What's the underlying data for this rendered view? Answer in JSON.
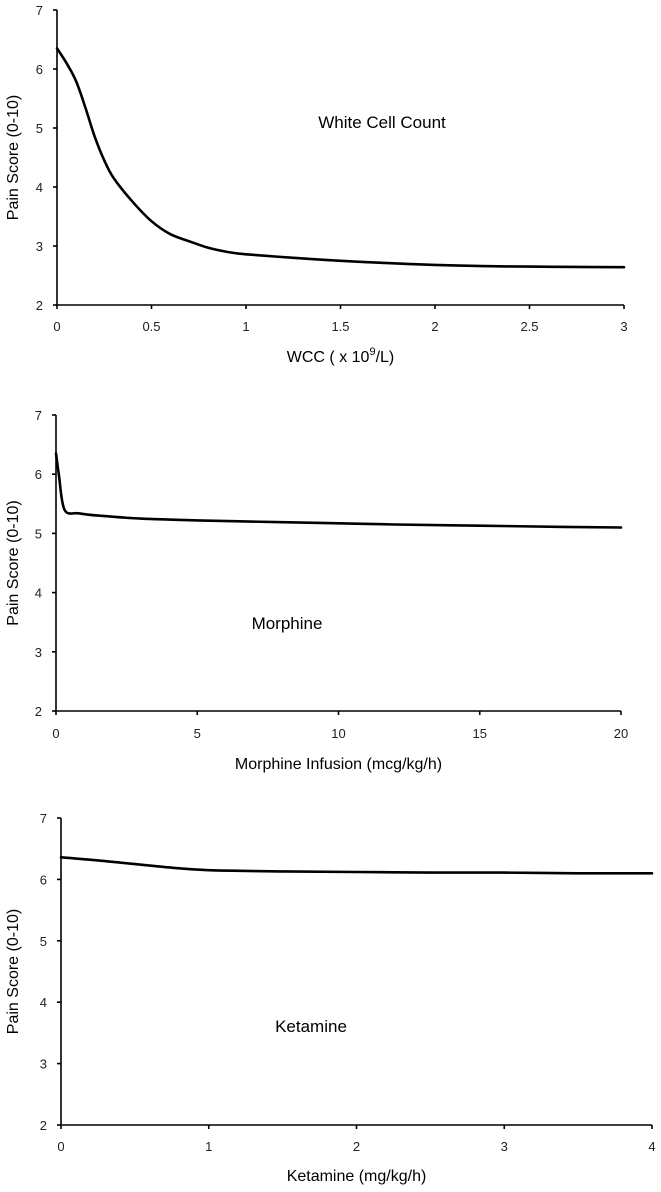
{
  "chart_data": [
    {
      "type": "line",
      "title": "",
      "annotation": "White Cell Count",
      "xlabel_main": "WCC ( x 10",
      "xlabel_sup": "9",
      "xlabel_tail": "/L)",
      "ylabel": "Pain Score (0-10)",
      "xlim": [
        0,
        3
      ],
      "ylim": [
        2,
        7
      ],
      "xticks": [
        0,
        0.5,
        1,
        1.5,
        2,
        2.5,
        3
      ],
      "yticks": [
        2,
        3,
        4,
        5,
        6,
        7
      ],
      "series": [
        {
          "name": "White Cell Count",
          "x": [
            0,
            0.05,
            0.1,
            0.15,
            0.2,
            0.25,
            0.3,
            0.4,
            0.5,
            0.6,
            0.7,
            0.8,
            0.9,
            1.0,
            1.25,
            1.5,
            1.75,
            2.0,
            2.25,
            2.5,
            2.75,
            3.0
          ],
          "y": [
            6.35,
            6.1,
            5.8,
            5.35,
            4.85,
            4.45,
            4.15,
            3.75,
            3.42,
            3.2,
            3.08,
            2.97,
            2.9,
            2.86,
            2.8,
            2.75,
            2.71,
            2.68,
            2.66,
            2.65,
            2.645,
            2.64
          ]
        }
      ]
    },
    {
      "type": "line",
      "title": "",
      "annotation": "Morphine",
      "xlabel": "Morphine Infusion (mcg/kg/h)",
      "ylabel": "Pain Score (0-10)",
      "xlim": [
        0,
        20
      ],
      "ylim": [
        2,
        7
      ],
      "xticks": [
        0,
        5,
        10,
        15,
        20
      ],
      "yticks": [
        2,
        3,
        4,
        5,
        6,
        7
      ],
      "series": [
        {
          "name": "Morphine",
          "x": [
            0,
            0.1,
            0.3,
            0.8,
            1.5,
            3,
            5,
            8,
            10,
            12,
            15,
            18,
            20
          ],
          "y": [
            6.35,
            6.0,
            5.4,
            5.34,
            5.3,
            5.25,
            5.22,
            5.19,
            5.17,
            5.15,
            5.13,
            5.11,
            5.1
          ]
        }
      ]
    },
    {
      "type": "line",
      "title": "",
      "annotation": "Ketamine",
      "xlabel": "Ketamine (mg/kg/h)",
      "ylabel": "Pain Score (0-10)",
      "xlim": [
        0,
        4
      ],
      "ylim": [
        2,
        7
      ],
      "xticks": [
        0,
        1,
        2,
        3,
        4
      ],
      "yticks": [
        2,
        3,
        4,
        5,
        6,
        7
      ],
      "series": [
        {
          "name": "Ketamine",
          "x": [
            0,
            0.25,
            0.5,
            0.75,
            1.0,
            1.5,
            2.0,
            2.5,
            3.0,
            3.5,
            4.0
          ],
          "y": [
            6.36,
            6.31,
            6.25,
            6.19,
            6.15,
            6.13,
            6.12,
            6.11,
            6.11,
            6.1,
            6.1
          ]
        }
      ]
    }
  ]
}
